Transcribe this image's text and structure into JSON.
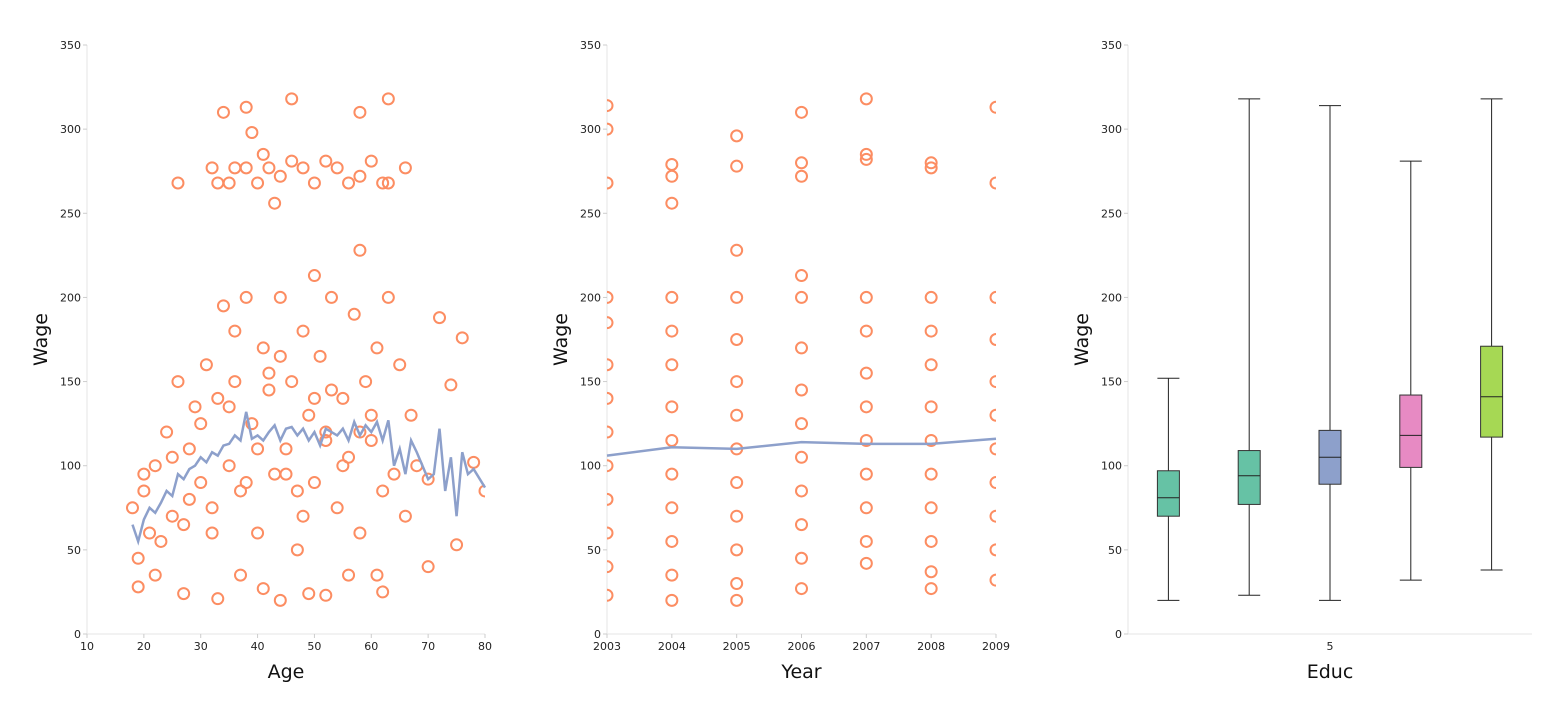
{
  "chart_data": [
    {
      "type": "scatter",
      "xlabel": "Age",
      "ylabel": "Wage",
      "xlim": [
        10,
        80
      ],
      "xticks": [
        10,
        20,
        30,
        40,
        50,
        60,
        70,
        80
      ],
      "ylim": [
        0,
        350
      ],
      "yticks": [
        0,
        50,
        100,
        150,
        200,
        250,
        300,
        350
      ],
      "points": {
        "color": "#fc8d62",
        "x": [
          26,
          32,
          33,
          35,
          36,
          38,
          40,
          42,
          44,
          46,
          48,
          50,
          52,
          54,
          56,
          58,
          60,
          62,
          63,
          66,
          34,
          38,
          39,
          41,
          46,
          63,
          58,
          43,
          58,
          50,
          18,
          19,
          20,
          21,
          22,
          23,
          24,
          25,
          26,
          27,
          28,
          29,
          30,
          31,
          32,
          33,
          34,
          35,
          36,
          37,
          38,
          39,
          40,
          41,
          42,
          43,
          44,
          45,
          46,
          47,
          48,
          49,
          50,
          51,
          52,
          53,
          54,
          55,
          56,
          57,
          58,
          59,
          60,
          61,
          62,
          63,
          64,
          65,
          66,
          67,
          68,
          70,
          72,
          74,
          76,
          78,
          80,
          19,
          22,
          27,
          33,
          37,
          41,
          44,
          49,
          52,
          56,
          61,
          62,
          70,
          75,
          20,
          25,
          28,
          30,
          35,
          40,
          45,
          50,
          55,
          60,
          32,
          42,
          48,
          58,
          38,
          44,
          53,
          47,
          36,
          52
        ],
        "y": [
          268,
          277,
          268,
          268,
          277,
          277,
          268,
          277,
          272,
          281,
          277,
          268,
          281,
          277,
          268,
          272,
          281,
          268,
          268,
          277,
          310,
          313,
          298,
          285,
          318,
          318,
          310,
          256,
          228,
          213,
          75,
          45,
          85,
          60,
          100,
          55,
          120,
          70,
          150,
          65,
          110,
          135,
          90,
          160,
          75,
          140,
          195,
          100,
          180,
          85,
          200,
          125,
          60,
          170,
          145,
          95,
          200,
          110,
          150,
          50,
          180,
          130,
          90,
          165,
          120,
          200,
          75,
          140,
          105,
          190,
          60,
          150,
          115,
          170,
          85,
          200,
          95,
          160,
          70,
          130,
          100,
          92,
          188,
          148,
          176,
          102,
          85,
          28,
          35,
          24,
          21,
          35,
          27,
          20,
          24,
          23,
          35,
          35,
          25,
          40,
          53,
          95,
          105,
          80,
          125,
          135,
          110,
          95,
          140,
          100,
          130,
          60,
          155,
          70,
          120,
          90,
          165,
          145,
          85,
          150,
          115
        ]
      },
      "line": {
        "color": "#8da0cb",
        "x": [
          18,
          19,
          20,
          21,
          22,
          23,
          24,
          25,
          26,
          27,
          28,
          29,
          30,
          31,
          32,
          33,
          34,
          35,
          36,
          37,
          38,
          39,
          40,
          41,
          42,
          43,
          44,
          45,
          46,
          47,
          48,
          49,
          50,
          51,
          52,
          53,
          54,
          55,
          56,
          57,
          58,
          59,
          60,
          61,
          62,
          63,
          64,
          65,
          66,
          67,
          68,
          69,
          70,
          71,
          72,
          73,
          74,
          75,
          76,
          77,
          78,
          80
        ],
        "y": [
          65,
          55,
          68,
          75,
          72,
          78,
          85,
          82,
          95,
          92,
          98,
          100,
          105,
          102,
          108,
          106,
          112,
          113,
          118,
          115,
          132,
          116,
          118,
          115,
          120,
          124,
          115,
          122,
          123,
          118,
          122,
          115,
          120,
          112,
          122,
          120,
          118,
          122,
          115,
          126,
          118,
          124,
          120,
          126,
          115,
          127,
          100,
          110,
          95,
          115,
          108,
          100,
          92,
          95,
          122,
          85,
          105,
          70,
          108,
          95,
          98,
          87
        ]
      }
    },
    {
      "type": "scatter",
      "xlabel": "Year",
      "ylabel": "Wage",
      "xlim": [
        2003,
        2009
      ],
      "xticks": [
        2003,
        2004,
        2005,
        2006,
        2007,
        2008,
        2009
      ],
      "ylim": [
        0,
        350
      ],
      "yticks": [
        0,
        50,
        100,
        150,
        200,
        250,
        300,
        350
      ],
      "points": {
        "color": "#fc8d62",
        "x": [
          2003,
          2003,
          2003,
          2003,
          2003,
          2003,
          2003,
          2003,
          2003,
          2003,
          2003,
          2003,
          2003,
          2004,
          2004,
          2004,
          2004,
          2004,
          2004,
          2004,
          2004,
          2004,
          2004,
          2004,
          2004,
          2004,
          2005,
          2005,
          2005,
          2005,
          2005,
          2005,
          2005,
          2005,
          2005,
          2005,
          2005,
          2005,
          2005,
          2006,
          2006,
          2006,
          2006,
          2006,
          2006,
          2006,
          2006,
          2006,
          2006,
          2006,
          2006,
          2006,
          2007,
          2007,
          2007,
          2007,
          2007,
          2007,
          2007,
          2007,
          2007,
          2007,
          2007,
          2007,
          2008,
          2008,
          2008,
          2008,
          2008,
          2008,
          2008,
          2008,
          2008,
          2008,
          2008,
          2008,
          2009,
          2009,
          2009,
          2009,
          2009,
          2009,
          2009,
          2009,
          2009,
          2009,
          2009
        ],
        "y": [
          23,
          40,
          60,
          80,
          100,
          120,
          140,
          160,
          185,
          200,
          268,
          300,
          314,
          20,
          35,
          55,
          75,
          95,
          115,
          135,
          160,
          180,
          200,
          256,
          272,
          279,
          20,
          30,
          50,
          70,
          90,
          110,
          130,
          150,
          175,
          200,
          228,
          278,
          296,
          27,
          45,
          65,
          85,
          105,
          125,
          145,
          170,
          200,
          213,
          272,
          280,
          310,
          42,
          55,
          75,
          95,
          115,
          135,
          155,
          180,
          200,
          282,
          285,
          318,
          27,
          37,
          55,
          75,
          95,
          115,
          135,
          160,
          180,
          200,
          277,
          280,
          32,
          50,
          70,
          90,
          110,
          130,
          150,
          175,
          200,
          268,
          313
        ]
      },
      "line": {
        "color": "#8da0cb",
        "x": [
          2003,
          2004,
          2005,
          2006,
          2007,
          2008,
          2009
        ],
        "y": [
          106,
          111,
          110,
          114,
          113,
          113,
          116
        ]
      }
    },
    {
      "type": "box",
      "xlabel": "Educ",
      "ylabel": "Wage",
      "categories": [
        null,
        null,
        "5",
        null,
        null
      ],
      "ylim": [
        0,
        350
      ],
      "yticks": [
        0,
        50,
        100,
        150,
        200,
        250,
        300,
        350
      ],
      "colors": [
        "#66c2a5",
        "#66c2a5",
        "#8da0cb",
        "#e78ac3",
        "#a6d854"
      ],
      "whisker_low": [
        20,
        23,
        20,
        32,
        38
      ],
      "q1": [
        70,
        77,
        89,
        99,
        117
      ],
      "median": [
        81,
        94,
        105,
        118,
        141
      ],
      "q3": [
        97,
        109,
        121,
        142,
        171
      ],
      "whisker_high": [
        152,
        318,
        314,
        281,
        318
      ]
    }
  ]
}
